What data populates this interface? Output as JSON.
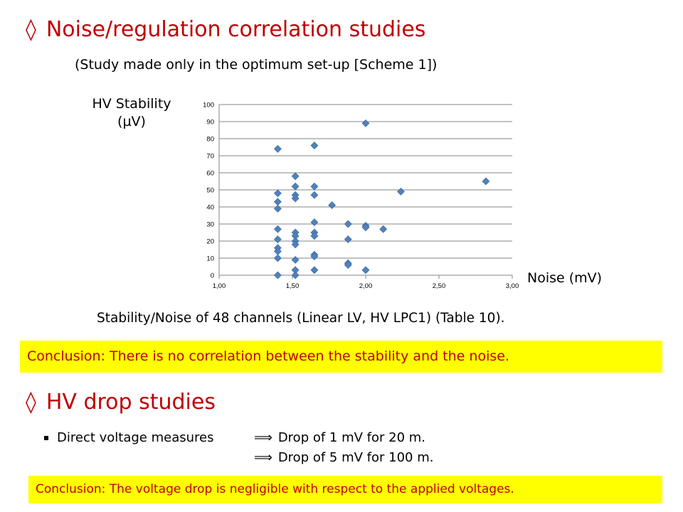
{
  "section1": {
    "title": "Noise/regulation correlation studies",
    "diamond_glyph": "◊",
    "subtitle": "(Study made only in the optimum set-up [Scheme 1])"
  },
  "chart_labels": {
    "ylabel_line1": "HV Stability",
    "ylabel_line2": "(µV)",
    "xlabel": "Noise (mV)",
    "caption": "Stability/Noise of 48 channels (Linear LV, HV LPC1) (Table 10)."
  },
  "chart_data": {
    "type": "scatter",
    "xlabel": "Noise (mV)",
    "ylabel": "HV Stability (µV)",
    "xlim": [
      1.0,
      3.0
    ],
    "ylim": [
      0,
      100
    ],
    "x_ticks": [
      "1,00",
      "1,50",
      "2,00",
      "2,50",
      "3,00"
    ],
    "y_ticks": [
      "0",
      "10",
      "20",
      "30",
      "40",
      "50",
      "60",
      "70",
      "80",
      "90",
      "100"
    ],
    "grid": "horizontal",
    "marker": "diamond",
    "marker_color": "#4f81bd",
    "points": [
      {
        "x": 1.4,
        "y": 74
      },
      {
        "x": 1.4,
        "y": 48
      },
      {
        "x": 1.4,
        "y": 43
      },
      {
        "x": 1.4,
        "y": 39
      },
      {
        "x": 1.4,
        "y": 27
      },
      {
        "x": 1.4,
        "y": 21
      },
      {
        "x": 1.4,
        "y": 16
      },
      {
        "x": 1.4,
        "y": 14
      },
      {
        "x": 1.4,
        "y": 10
      },
      {
        "x": 1.4,
        "y": 0
      },
      {
        "x": 1.52,
        "y": 58
      },
      {
        "x": 1.52,
        "y": 52
      },
      {
        "x": 1.52,
        "y": 47
      },
      {
        "x": 1.52,
        "y": 45
      },
      {
        "x": 1.52,
        "y": 25
      },
      {
        "x": 1.52,
        "y": 23
      },
      {
        "x": 1.52,
        "y": 20
      },
      {
        "x": 1.52,
        "y": 18
      },
      {
        "x": 1.52,
        "y": 9
      },
      {
        "x": 1.52,
        "y": 3
      },
      {
        "x": 1.52,
        "y": 0
      },
      {
        "x": 1.65,
        "y": 76
      },
      {
        "x": 1.65,
        "y": 52
      },
      {
        "x": 1.65,
        "y": 47
      },
      {
        "x": 1.65,
        "y": 31
      },
      {
        "x": 1.65,
        "y": 25
      },
      {
        "x": 1.65,
        "y": 23
      },
      {
        "x": 1.65,
        "y": 12
      },
      {
        "x": 1.65,
        "y": 11
      },
      {
        "x": 1.65,
        "y": 3
      },
      {
        "x": 1.77,
        "y": 41
      },
      {
        "x": 1.88,
        "y": 30
      },
      {
        "x": 1.88,
        "y": 21
      },
      {
        "x": 1.88,
        "y": 7
      },
      {
        "x": 1.88,
        "y": 6
      },
      {
        "x": 2.0,
        "y": 89
      },
      {
        "x": 2.0,
        "y": 29
      },
      {
        "x": 2.0,
        "y": 28
      },
      {
        "x": 2.0,
        "y": 3
      },
      {
        "x": 2.12,
        "y": 27
      },
      {
        "x": 2.24,
        "y": 49
      },
      {
        "x": 2.82,
        "y": 55
      }
    ]
  },
  "conclusion1": "Conclusion: There is no correlation between the stability and the noise.",
  "section2": {
    "title": "HV drop studies",
    "diamond_glyph": "◊",
    "bullet_text": "Direct voltage measures",
    "implies_glyph": "⟹",
    "result1": "Drop of 1 mV for 20 m.",
    "result2": "Drop of 5 mV for 100 m."
  },
  "conclusion2": "Conclusion: The voltage drop is negligible with respect to the applied voltages.",
  "colors": {
    "heading": "#c00000",
    "highlight": "#ffff00",
    "marker": "#4f81bd"
  }
}
